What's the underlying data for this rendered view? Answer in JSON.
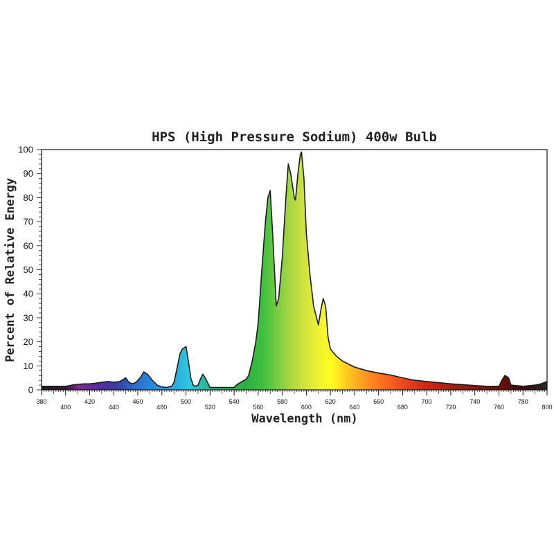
{
  "chart_data": {
    "type": "area",
    "title": "HPS (High Pressure Sodium) 400w Bulb",
    "xlabel": "Wavelength (nm)",
    "ylabel": "Percent of Relative Energy",
    "xlim": [
      380,
      800
    ],
    "ylim": [
      0,
      100
    ],
    "x_ticks": [
      "380",
      "400",
      "420",
      "440",
      "460",
      "480",
      "500",
      "520",
      "540",
      "560",
      "580",
      "600",
      "620",
      "640",
      "660",
      "680",
      "700",
      "720",
      "740",
      "760",
      "780",
      "800"
    ],
    "y_ticks": [
      "0",
      "10",
      "20",
      "30",
      "40",
      "50",
      "60",
      "70",
      "80",
      "90",
      "100"
    ],
    "grid": false,
    "legend": "none",
    "fill": "visible-spectrum gradient",
    "series": [
      {
        "points": [
          [
            380,
            1.5
          ],
          [
            390,
            1.5
          ],
          [
            400,
            1.5
          ],
          [
            405,
            2
          ],
          [
            410,
            2.3
          ],
          [
            415,
            2.5
          ],
          [
            420,
            2.5
          ],
          [
            425,
            2.8
          ],
          [
            430,
            3.2
          ],
          [
            435,
            3.5
          ],
          [
            440,
            3.2
          ],
          [
            445,
            3.5
          ],
          [
            450,
            5
          ],
          [
            452,
            3.5
          ],
          [
            455,
            2.5
          ],
          [
            458,
            3
          ],
          [
            462,
            5
          ],
          [
            465,
            7.5
          ],
          [
            468,
            6.5
          ],
          [
            472,
            4
          ],
          [
            476,
            2
          ],
          [
            480,
            1.2
          ],
          [
            484,
            1
          ],
          [
            488,
            1.5
          ],
          [
            490,
            3
          ],
          [
            493,
            10
          ],
          [
            495,
            15
          ],
          [
            497,
            17
          ],
          [
            500,
            18
          ],
          [
            502,
            12
          ],
          [
            504,
            5
          ],
          [
            506,
            2
          ],
          [
            508,
            1.5
          ],
          [
            510,
            2
          ],
          [
            512,
            4.5
          ],
          [
            514,
            6.5
          ],
          [
            516,
            5
          ],
          [
            518,
            3
          ],
          [
            520,
            1
          ],
          [
            530,
            1
          ],
          [
            540,
            1
          ],
          [
            542,
            2
          ],
          [
            545,
            3
          ],
          [
            550,
            4.5
          ],
          [
            552,
            6
          ],
          [
            555,
            12
          ],
          [
            558,
            20
          ],
          [
            560,
            28
          ],
          [
            563,
            50
          ],
          [
            566,
            70
          ],
          [
            568,
            80
          ],
          [
            570,
            83
          ],
          [
            572,
            65
          ],
          [
            574,
            45
          ],
          [
            575,
            35
          ],
          [
            577,
            38
          ],
          [
            580,
            55
          ],
          [
            583,
            80
          ],
          [
            585,
            94
          ],
          [
            587,
            90
          ],
          [
            590,
            80
          ],
          [
            591,
            79
          ],
          [
            593,
            90
          ],
          [
            595,
            98
          ],
          [
            596,
            99
          ],
          [
            598,
            88
          ],
          [
            600,
            65
          ],
          [
            603,
            48
          ],
          [
            606,
            35
          ],
          [
            610,
            27
          ],
          [
            612,
            33
          ],
          [
            614,
            38
          ],
          [
            616,
            35
          ],
          [
            618,
            22
          ],
          [
            620,
            17
          ],
          [
            625,
            14
          ],
          [
            630,
            12
          ],
          [
            640,
            9.5
          ],
          [
            650,
            8
          ],
          [
            660,
            7
          ],
          [
            670,
            6.2
          ],
          [
            680,
            5
          ],
          [
            690,
            4
          ],
          [
            700,
            3.5
          ],
          [
            710,
            3
          ],
          [
            720,
            2.5
          ],
          [
            730,
            2.2
          ],
          [
            740,
            1.8
          ],
          [
            750,
            1.5
          ],
          [
            760,
            1.5
          ],
          [
            763,
            4.5
          ],
          [
            765,
            6
          ],
          [
            768,
            5
          ],
          [
            770,
            2
          ],
          [
            780,
            1.5
          ],
          [
            790,
            2
          ],
          [
            795,
            2.5
          ],
          [
            800,
            3.5
          ]
        ]
      }
    ]
  }
}
